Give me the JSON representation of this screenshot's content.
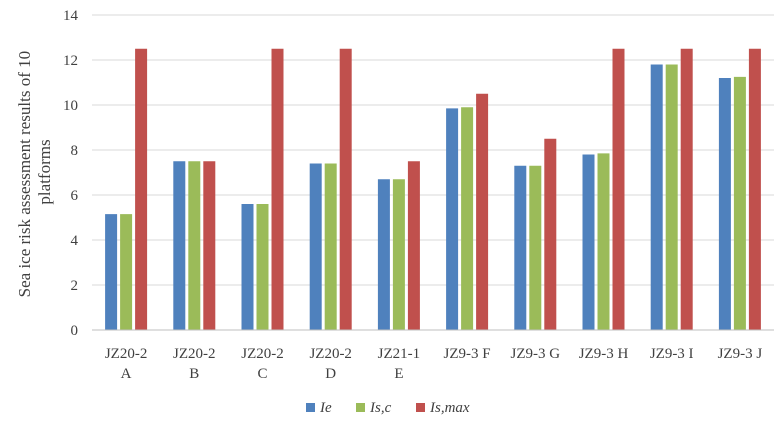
{
  "chart_data": {
    "type": "bar",
    "ylabel_lines": [
      "Sea ice risk assessment results of 10",
      "platforms"
    ],
    "xlabel": "",
    "ylim": [
      0,
      14
    ],
    "yticks": [
      0,
      2,
      4,
      6,
      8,
      10,
      12,
      14
    ],
    "grid": true,
    "legend_position": "bottom",
    "categories": [
      [
        "JZ20-2",
        "A"
      ],
      [
        "JZ20-2",
        "B"
      ],
      [
        "JZ20-2",
        "C"
      ],
      [
        "JZ20-2",
        "D"
      ],
      [
        "JZ21-1",
        "E"
      ],
      [
        "JZ9-3 F"
      ],
      [
        "JZ9-3 G"
      ],
      [
        "JZ9-3 H"
      ],
      [
        "JZ9-3 I"
      ],
      [
        "JZ9-3 J"
      ]
    ],
    "series": [
      {
        "name": "Ie",
        "color": "#4f81bd",
        "values": [
          5.15,
          7.5,
          5.6,
          7.4,
          6.7,
          9.85,
          7.3,
          7.8,
          11.8,
          11.2
        ]
      },
      {
        "name": "Is,c",
        "color": "#9bbb59",
        "values": [
          5.15,
          7.5,
          5.6,
          7.4,
          6.7,
          9.9,
          7.3,
          7.85,
          11.8,
          11.25
        ]
      },
      {
        "name": "Is,max",
        "color": "#c0504d",
        "values": [
          12.5,
          7.5,
          12.5,
          12.5,
          7.5,
          10.5,
          8.5,
          12.5,
          12.5,
          12.5
        ]
      }
    ]
  }
}
